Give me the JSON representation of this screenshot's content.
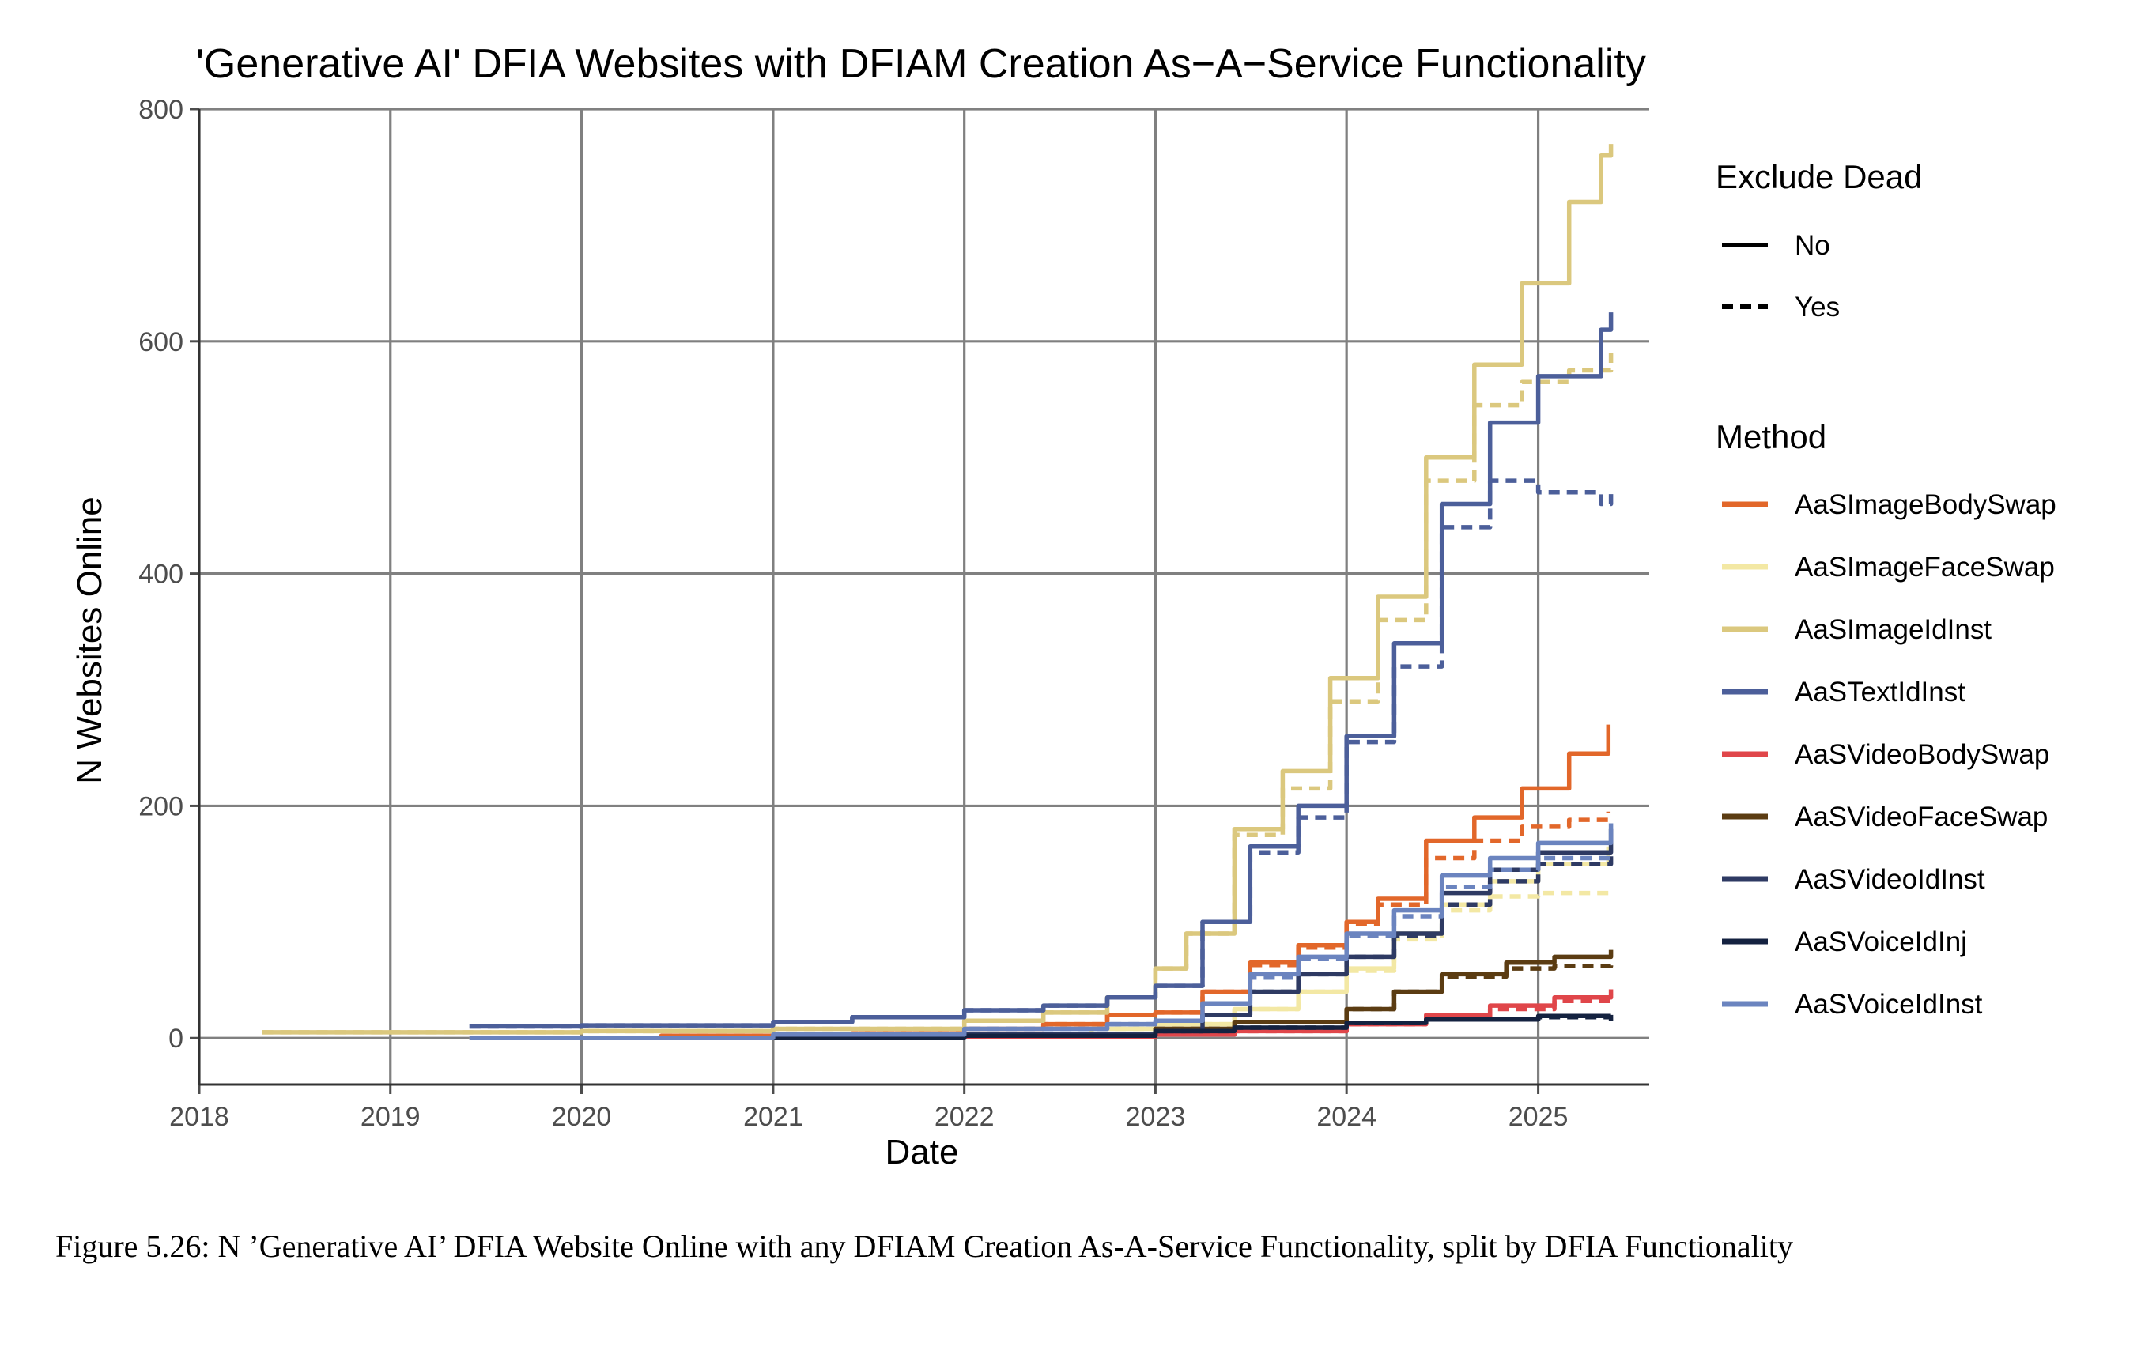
{
  "caption": "Figure 5.26: N ’Generative AI’ DFIA Website Online with any DFIAM Creation As-A-Service Functionality, split by DFIA Functionality",
  "chart_data": {
    "type": "line",
    "title": "'Generative AI' DFIA Websites with DFIAM Creation As−A−Service Functionality",
    "xlabel": "Date",
    "ylabel": "N Websites Online",
    "xlim": [
      "2018-01-01",
      "2025-08-01"
    ],
    "ylim": [
      -40,
      800
    ],
    "x_ticks": [
      "2018",
      "2019",
      "2020",
      "2021",
      "2022",
      "2023",
      "2024",
      "2025"
    ],
    "y_ticks": [
      0,
      200,
      400,
      600,
      800
    ],
    "grid": true,
    "legend": {
      "placement": "right",
      "linetype_title": "Exclude Dead",
      "linetype_entries": [
        {
          "label": "No",
          "dash": "solid"
        },
        {
          "label": "Yes",
          "dash": "dashed"
        }
      ],
      "method_title": "Method"
    },
    "series": [
      {
        "name": "AaSImageBodySwap",
        "color": "#e2672a",
        "no": [
          [
            "2019-06-01",
            0
          ],
          [
            "2020-06-01",
            2
          ],
          [
            "2021-06-01",
            4
          ],
          [
            "2022-01-01",
            8
          ],
          [
            "2022-06-01",
            12
          ],
          [
            "2022-10-01",
            20
          ],
          [
            "2023-01-01",
            22
          ],
          [
            "2023-04-01",
            40
          ],
          [
            "2023-07-01",
            65
          ],
          [
            "2023-10-01",
            80
          ],
          [
            "2024-01-01",
            100
          ],
          [
            "2024-03-01",
            120
          ],
          [
            "2024-06-01",
            170
          ],
          [
            "2024-09-01",
            190
          ],
          [
            "2024-12-01",
            215
          ],
          [
            "2025-03-01",
            245
          ],
          [
            "2025-05-15",
            270
          ]
        ],
        "yes": [
          [
            "2019-06-01",
            0
          ],
          [
            "2020-06-01",
            2
          ],
          [
            "2021-06-01",
            4
          ],
          [
            "2022-01-01",
            8
          ],
          [
            "2022-06-01",
            12
          ],
          [
            "2022-10-01",
            20
          ],
          [
            "2023-01-01",
            22
          ],
          [
            "2023-04-01",
            40
          ],
          [
            "2023-07-01",
            63
          ],
          [
            "2023-10-01",
            78
          ],
          [
            "2024-01-01",
            98
          ],
          [
            "2024-03-01",
            115
          ],
          [
            "2024-06-01",
            155
          ],
          [
            "2024-09-01",
            170
          ],
          [
            "2024-12-01",
            182
          ],
          [
            "2025-03-01",
            188
          ],
          [
            "2025-05-15",
            195
          ]
        ]
      },
      {
        "name": "AaSImageFaceSwap",
        "color": "#f3e8a4",
        "no": [
          [
            "2019-06-01",
            0
          ],
          [
            "2021-01-01",
            1
          ],
          [
            "2022-01-01",
            3
          ],
          [
            "2022-09-01",
            8
          ],
          [
            "2023-01-01",
            12
          ],
          [
            "2023-06-01",
            25
          ],
          [
            "2023-10-01",
            40
          ],
          [
            "2024-01-01",
            60
          ],
          [
            "2024-04-01",
            90
          ],
          [
            "2024-07-01",
            115
          ],
          [
            "2024-10-01",
            135
          ],
          [
            "2025-01-01",
            150
          ],
          [
            "2025-05-15",
            165
          ]
        ],
        "yes": [
          [
            "2019-06-01",
            0
          ],
          [
            "2021-01-01",
            1
          ],
          [
            "2022-01-01",
            3
          ],
          [
            "2022-09-01",
            8
          ],
          [
            "2023-01-01",
            12
          ],
          [
            "2023-06-01",
            25
          ],
          [
            "2023-10-01",
            40
          ],
          [
            "2024-01-01",
            58
          ],
          [
            "2024-04-01",
            85
          ],
          [
            "2024-07-01",
            110
          ],
          [
            "2024-10-01",
            122
          ],
          [
            "2025-01-01",
            125
          ],
          [
            "2025-05-15",
            130
          ]
        ]
      },
      {
        "name": "AaSImageIdInst",
        "color": "#dbc87e",
        "no": [
          [
            "2018-05-01",
            5
          ],
          [
            "2019-06-01",
            5
          ],
          [
            "2020-01-01",
            6
          ],
          [
            "2021-01-01",
            8
          ],
          [
            "2022-01-01",
            15
          ],
          [
            "2022-06-01",
            22
          ],
          [
            "2022-10-01",
            35
          ],
          [
            "2023-01-01",
            60
          ],
          [
            "2023-03-01",
            90
          ],
          [
            "2023-06-01",
            180
          ],
          [
            "2023-09-01",
            230
          ],
          [
            "2023-12-01",
            310
          ],
          [
            "2024-03-01",
            380
          ],
          [
            "2024-06-01",
            500
          ],
          [
            "2024-09-01",
            580
          ],
          [
            "2024-12-01",
            650
          ],
          [
            "2025-03-01",
            720
          ],
          [
            "2025-05-01",
            760
          ],
          [
            "2025-05-20",
            770
          ]
        ],
        "yes": [
          [
            "2018-05-01",
            5
          ],
          [
            "2019-06-01",
            5
          ],
          [
            "2020-01-01",
            6
          ],
          [
            "2021-01-01",
            8
          ],
          [
            "2022-01-01",
            15
          ],
          [
            "2022-06-01",
            22
          ],
          [
            "2022-10-01",
            35
          ],
          [
            "2023-01-01",
            60
          ],
          [
            "2023-03-01",
            90
          ],
          [
            "2023-06-01",
            175
          ],
          [
            "2023-09-01",
            215
          ],
          [
            "2023-12-01",
            290
          ],
          [
            "2024-03-01",
            360
          ],
          [
            "2024-06-01",
            480
          ],
          [
            "2024-09-01",
            545
          ],
          [
            "2024-12-01",
            565
          ],
          [
            "2025-03-01",
            575
          ],
          [
            "2025-05-20",
            590
          ]
        ]
      },
      {
        "name": "AaSTextIdInst",
        "color": "#4c5f9a",
        "no": [
          [
            "2019-06-01",
            10
          ],
          [
            "2020-01-01",
            11
          ],
          [
            "2021-01-01",
            14
          ],
          [
            "2021-06-01",
            18
          ],
          [
            "2022-01-01",
            24
          ],
          [
            "2022-06-01",
            28
          ],
          [
            "2022-10-01",
            35
          ],
          [
            "2023-01-01",
            45
          ],
          [
            "2023-04-01",
            100
          ],
          [
            "2023-07-01",
            165
          ],
          [
            "2023-10-01",
            200
          ],
          [
            "2024-01-01",
            260
          ],
          [
            "2024-04-01",
            340
          ],
          [
            "2024-07-01",
            460
          ],
          [
            "2024-10-01",
            530
          ],
          [
            "2025-01-01",
            570
          ],
          [
            "2025-05-01",
            610
          ],
          [
            "2025-05-20",
            625
          ]
        ],
        "yes": [
          [
            "2019-06-01",
            10
          ],
          [
            "2020-01-01",
            11
          ],
          [
            "2021-01-01",
            14
          ],
          [
            "2021-06-01",
            18
          ],
          [
            "2022-01-01",
            24
          ],
          [
            "2022-06-01",
            28
          ],
          [
            "2022-10-01",
            35
          ],
          [
            "2023-01-01",
            45
          ],
          [
            "2023-04-01",
            100
          ],
          [
            "2023-07-01",
            160
          ],
          [
            "2023-10-01",
            190
          ],
          [
            "2024-01-01",
            255
          ],
          [
            "2024-04-01",
            320
          ],
          [
            "2024-07-01",
            440
          ],
          [
            "2024-10-01",
            480
          ],
          [
            "2025-01-01",
            470
          ],
          [
            "2025-05-01",
            460
          ],
          [
            "2025-05-20",
            470
          ]
        ]
      },
      {
        "name": "AaSVideoBodySwap",
        "color": "#e0464a",
        "no": [
          [
            "2020-01-01",
            0
          ],
          [
            "2022-01-01",
            1
          ],
          [
            "2023-01-01",
            3
          ],
          [
            "2023-06-01",
            6
          ],
          [
            "2024-01-01",
            12
          ],
          [
            "2024-06-01",
            20
          ],
          [
            "2024-10-01",
            28
          ],
          [
            "2025-02-01",
            35
          ],
          [
            "2025-05-20",
            42
          ]
        ],
        "yes": [
          [
            "2020-01-01",
            0
          ],
          [
            "2022-01-01",
            1
          ],
          [
            "2023-01-01",
            3
          ],
          [
            "2023-06-01",
            6
          ],
          [
            "2024-01-01",
            12
          ],
          [
            "2024-06-01",
            18
          ],
          [
            "2024-10-01",
            25
          ],
          [
            "2025-02-01",
            32
          ],
          [
            "2025-05-20",
            38
          ]
        ]
      },
      {
        "name": "AaSVideoFaceSwap",
        "color": "#5b3c12",
        "no": [
          [
            "2020-01-01",
            0
          ],
          [
            "2022-01-01",
            2
          ],
          [
            "2023-01-01",
            8
          ],
          [
            "2023-06-01",
            14
          ],
          [
            "2024-01-01",
            25
          ],
          [
            "2024-04-01",
            40
          ],
          [
            "2024-07-01",
            55
          ],
          [
            "2024-11-01",
            65
          ],
          [
            "2025-02-01",
            70
          ],
          [
            "2025-05-20",
            76
          ]
        ],
        "yes": [
          [
            "2020-01-01",
            0
          ],
          [
            "2022-01-01",
            2
          ],
          [
            "2023-01-01",
            8
          ],
          [
            "2023-06-01",
            14
          ],
          [
            "2024-01-01",
            25
          ],
          [
            "2024-04-01",
            40
          ],
          [
            "2024-07-01",
            53
          ],
          [
            "2024-11-01",
            60
          ],
          [
            "2025-02-01",
            62
          ],
          [
            "2025-05-20",
            68
          ]
        ]
      },
      {
        "name": "AaSVideoIdInst",
        "color": "#2e3a63",
        "no": [
          [
            "2020-01-01",
            0
          ],
          [
            "2022-01-01",
            3
          ],
          [
            "2023-01-01",
            6
          ],
          [
            "2023-04-01",
            20
          ],
          [
            "2023-07-01",
            40
          ],
          [
            "2023-10-01",
            55
          ],
          [
            "2024-01-01",
            70
          ],
          [
            "2024-04-01",
            90
          ],
          [
            "2024-07-01",
            125
          ],
          [
            "2024-10-01",
            145
          ],
          [
            "2025-01-01",
            160
          ],
          [
            "2025-05-20",
            180
          ]
        ],
        "yes": [
          [
            "2020-01-01",
            0
          ],
          [
            "2022-01-01",
            3
          ],
          [
            "2023-01-01",
            6
          ],
          [
            "2023-04-01",
            20
          ],
          [
            "2023-07-01",
            40
          ],
          [
            "2023-10-01",
            55
          ],
          [
            "2024-01-01",
            70
          ],
          [
            "2024-04-01",
            88
          ],
          [
            "2024-07-01",
            115
          ],
          [
            "2024-10-01",
            135
          ],
          [
            "2025-01-01",
            150
          ],
          [
            "2025-05-20",
            158
          ]
        ]
      },
      {
        "name": "AaSVoiceIdInj",
        "color": "#142240",
        "no": [
          [
            "2019-10-01",
            0
          ],
          [
            "2022-01-01",
            2
          ],
          [
            "2023-01-01",
            6
          ],
          [
            "2023-06-01",
            9
          ],
          [
            "2024-01-01",
            13
          ],
          [
            "2024-06-01",
            16
          ],
          [
            "2025-01-01",
            19
          ],
          [
            "2025-05-20",
            20
          ]
        ],
        "yes": [
          [
            "2019-10-01",
            0
          ],
          [
            "2022-01-01",
            2
          ],
          [
            "2023-01-01",
            6
          ],
          [
            "2023-06-01",
            9
          ],
          [
            "2024-01-01",
            13
          ],
          [
            "2024-06-01",
            16
          ],
          [
            "2025-01-01",
            18
          ],
          [
            "2025-05-20",
            15
          ]
        ]
      },
      {
        "name": "AaSVoiceIdInst",
        "color": "#6b84bf",
        "no": [
          [
            "2019-06-01",
            0
          ],
          [
            "2021-01-01",
            3
          ],
          [
            "2022-01-01",
            8
          ],
          [
            "2022-10-01",
            12
          ],
          [
            "2023-01-01",
            15
          ],
          [
            "2023-04-01",
            30
          ],
          [
            "2023-07-01",
            55
          ],
          [
            "2023-10-01",
            70
          ],
          [
            "2024-01-01",
            90
          ],
          [
            "2024-04-01",
            110
          ],
          [
            "2024-07-01",
            140
          ],
          [
            "2024-10-01",
            155
          ],
          [
            "2025-01-01",
            168
          ],
          [
            "2025-05-20",
            185
          ]
        ],
        "yes": [
          [
            "2019-06-01",
            0
          ],
          [
            "2021-01-01",
            3
          ],
          [
            "2022-01-01",
            8
          ],
          [
            "2022-10-01",
            12
          ],
          [
            "2023-01-01",
            15
          ],
          [
            "2023-04-01",
            30
          ],
          [
            "2023-07-01",
            52
          ],
          [
            "2023-10-01",
            68
          ],
          [
            "2024-01-01",
            88
          ],
          [
            "2024-04-01",
            105
          ],
          [
            "2024-07-01",
            130
          ],
          [
            "2024-10-01",
            145
          ],
          [
            "2025-01-01",
            155
          ],
          [
            "2025-05-20",
            160
          ]
        ]
      }
    ]
  }
}
